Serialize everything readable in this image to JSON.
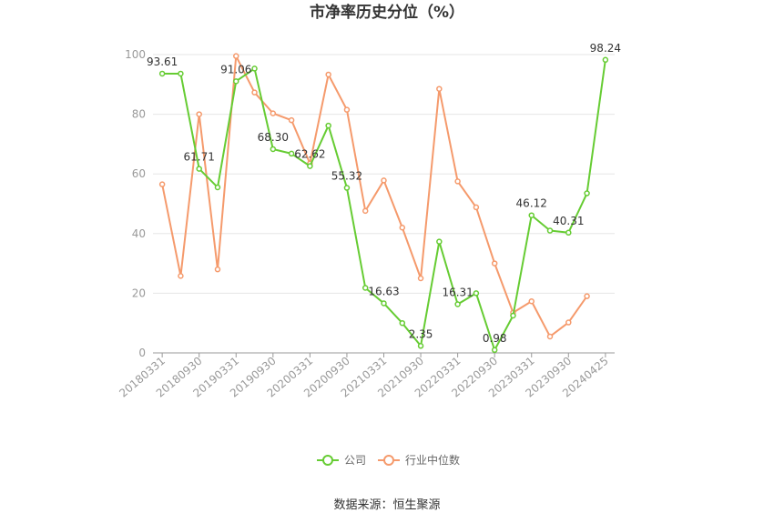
{
  "chart_data": {
    "type": "line",
    "title": "市净率历史分位（%）",
    "xlabel": "",
    "ylabel": "",
    "ylim": [
      0,
      100
    ],
    "yticks": [
      0,
      20,
      40,
      60,
      80,
      100
    ],
    "grid": true,
    "legend_position": "bottom",
    "tick_labels": [
      "20180331",
      "20180930",
      "20190331",
      "20190930",
      "20200331",
      "20200930",
      "20210331",
      "20210930",
      "20220331",
      "20220930",
      "20230331",
      "20230930",
      "20240425"
    ],
    "x_count": 25,
    "series": [
      {
        "name": "公司",
        "color": "#66cc33",
        "values": [
          93.61,
          93.61,
          61.71,
          55.5,
          91.06,
          95.3,
          68.3,
          66.8,
          62.62,
          76.2,
          55.32,
          21.8,
          16.63,
          10.0,
          2.35,
          37.3,
          16.31,
          20.0,
          0.98,
          12.5,
          46.12,
          41.0,
          40.31,
          53.5,
          98.24
        ],
        "labels": [
          "93.61",
          "",
          "61.71",
          "",
          "91.06",
          "",
          "68.30",
          "",
          "62.62",
          "",
          "55.32",
          "",
          "16.63",
          "",
          "2.35",
          "",
          "16.31",
          "",
          "0.98",
          "",
          "46.12",
          "",
          "40.31",
          "",
          "98.24"
        ]
      },
      {
        "name": "行业中位数",
        "color": "#f59a6c",
        "values": [
          56.5,
          25.8,
          80.0,
          28.0,
          99.5,
          87.3,
          80.3,
          78.0,
          63.5,
          93.3,
          81.5,
          47.6,
          57.8,
          42.0,
          25.0,
          88.5,
          57.5,
          48.8,
          30.0,
          13.5,
          17.3,
          5.5,
          10.2,
          19.0,
          null
        ]
      }
    ]
  },
  "source_text": "数据来源：恒生聚源"
}
